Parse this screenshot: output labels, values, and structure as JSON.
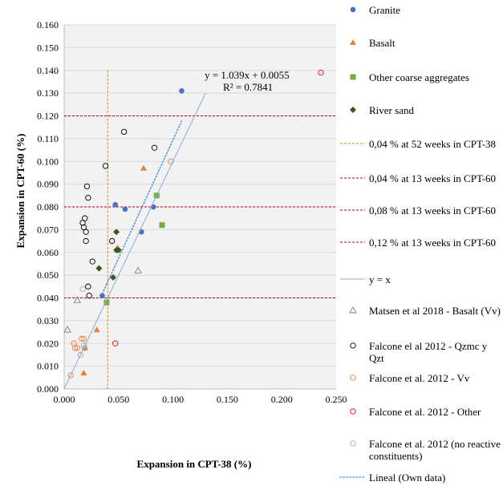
{
  "chart_data": {
    "type": "scatter",
    "xlabel": "Expansion in CPT-38 (%)",
    "ylabel": "Expansion in CPT-60  (%)",
    "xlim": [
      0,
      0.25
    ],
    "ylim": [
      0,
      0.16
    ],
    "x_ticks": [
      "0.000",
      "0.050",
      "0.100",
      "0.150",
      "0.200",
      "0.250"
    ],
    "y_ticks": [
      "0.000",
      "0.010",
      "0.020",
      "0.030",
      "0.040",
      "0.050",
      "0.060",
      "0.070",
      "0.080",
      "0.090",
      "0.100",
      "0.110",
      "0.120",
      "0.130",
      "0.140",
      "0.150",
      "0.160"
    ],
    "grid": "horizontal",
    "equation": "y = 1.039x + 0.0055",
    "r_squared": "R² = 0.7841",
    "series": [
      {
        "name": "Granite",
        "marker": "circle-filled",
        "color": "#4472C4",
        "points": [
          [
            0.035,
            0.041
          ],
          [
            0.047,
            0.081
          ],
          [
            0.056,
            0.079
          ],
          [
            0.071,
            0.069
          ],
          [
            0.082,
            0.08
          ],
          [
            0.108,
            0.131
          ]
        ]
      },
      {
        "name": "Basalt",
        "marker": "triangle-filled",
        "color": "#ED7D31",
        "points": [
          [
            0.018,
            0.007
          ],
          [
            0.019,
            0.018
          ],
          [
            0.03,
            0.026
          ],
          [
            0.049,
            0.062
          ],
          [
            0.073,
            0.097
          ]
        ]
      },
      {
        "name": "Other coarse aggregates",
        "marker": "square-filled",
        "color": "#70AD47",
        "points": [
          [
            0.039,
            0.038
          ],
          [
            0.085,
            0.085
          ],
          [
            0.09,
            0.072
          ]
        ]
      },
      {
        "name": "River sand",
        "marker": "diamond-filled",
        "color": "#375623",
        "points": [
          [
            0.032,
            0.053
          ],
          [
            0.045,
            0.049
          ],
          [
            0.048,
            0.061
          ],
          [
            0.048,
            0.069
          ],
          [
            0.05,
            0.061
          ]
        ]
      },
      {
        "name": "Matsen et al 2018 - Basalt (Vv)",
        "marker": "triangle-open",
        "color": "#808080",
        "points": [
          [
            0.003,
            0.026
          ],
          [
            0.012,
            0.039
          ],
          [
            0.068,
            0.052
          ]
        ]
      },
      {
        "name": "Falcone el al 2012 - Qzmc y Qzt",
        "marker": "circle-open",
        "color": "#000000",
        "points": [
          [
            0.017,
            0.073
          ],
          [
            0.018,
            0.071
          ],
          [
            0.019,
            0.075
          ],
          [
            0.02,
            0.069
          ],
          [
            0.02,
            0.065
          ],
          [
            0.021,
            0.089
          ],
          [
            0.022,
            0.084
          ],
          [
            0.022,
            0.045
          ],
          [
            0.023,
            0.041
          ],
          [
            0.026,
            0.056
          ],
          [
            0.038,
            0.098
          ],
          [
            0.044,
            0.065
          ],
          [
            0.055,
            0.113
          ],
          [
            0.083,
            0.106
          ]
        ]
      },
      {
        "name": "Falcone et al. 2012 - Vv",
        "marker": "circle-open",
        "color": "#ED7D31",
        "points": [
          [
            0.006,
            0.006
          ],
          [
            0.009,
            0.02
          ],
          [
            0.01,
            0.018
          ],
          [
            0.012,
            0.018
          ],
          [
            0.016,
            0.022
          ],
          [
            0.018,
            0.022
          ],
          [
            0.098,
            0.1
          ]
        ]
      },
      {
        "name": "Falcone et al. 2012 - Other",
        "marker": "circle-open",
        "color": "#FF0000",
        "points": [
          [
            0.047,
            0.02
          ],
          [
            0.236,
            0.139
          ]
        ]
      },
      {
        "name": "Falcone et al. 2012 (no reactive constituents)",
        "marker": "circle-open",
        "color": "#A5A5A5",
        "points": [
          [
            0.015,
            0.015
          ],
          [
            0.017,
            0.044
          ],
          [
            0.018,
            0.019
          ],
          [
            0.019,
            0.018
          ]
        ]
      }
    ],
    "reference_lines": [
      {
        "name": "0,04 % at 52 weeks in CPT-38",
        "orientation": "vertical",
        "value": 0.04,
        "color": "#BF9000"
      },
      {
        "name": "0,04 % at 13 weeks in CPT-60",
        "orientation": "horizontal",
        "value": 0.04,
        "color": "#C00000"
      },
      {
        "name": "0,08 % at 13 weeks in CPT-60",
        "orientation": "horizontal",
        "value": 0.08,
        "color": "#C00000"
      },
      {
        "name": "0,12 % at 13 weeks in CPT-60",
        "orientation": "horizontal",
        "value": 0.12,
        "color": "#C00000"
      }
    ],
    "identity_line": {
      "name": "y = x",
      "color": "#8EA9DB",
      "x_range": [
        0,
        0.13
      ]
    },
    "trendline": {
      "name": "Lineal (Own data)",
      "slope": 1.039,
      "intercept": 0.0055,
      "color": "#5B9BD5",
      "x_range": [
        0.035,
        0.108
      ]
    }
  },
  "legend": [
    {
      "label": "Granite",
      "symbol": "circle-filled",
      "color": "#4472C4"
    },
    {
      "label": "Basalt",
      "symbol": "triangle-filled",
      "color": "#ED7D31"
    },
    {
      "label": "Other coarse aggregates",
      "symbol": "square-filled",
      "color": "#70AD47"
    },
    {
      "label": "River sand",
      "symbol": "diamond-filled",
      "color": "#375623"
    },
    {
      "label": "0,04 % at 52 weeks in CPT-38",
      "symbol": "line-dashed",
      "color": "#BF9000"
    },
    {
      "label": "0,04 % at 13 weeks in CPT-60",
      "symbol": "line-dashed",
      "color": "#C00000"
    },
    {
      "label": "0,08 % at 13 weeks in CPT-60",
      "symbol": "line-dashed",
      "color": "#C00000"
    },
    {
      "label": "0,12 % at 13 weeks in CPT-60",
      "symbol": "line-dashed",
      "color": "#C00000"
    },
    {
      "label": "y = x",
      "symbol": "line-solid",
      "color": "#8EA9DB"
    },
    {
      "label": "Matsen et al 2018 - Basalt (Vv)",
      "symbol": "triangle-open",
      "color": "#808080"
    },
    {
      "label": "Falcone el al 2012 - Qzmc y Qzt",
      "symbol": "circle-open",
      "color": "#000000"
    },
    {
      "label": "Falcone et al. 2012 - Vv",
      "symbol": "circle-open",
      "color": "#ED7D31"
    },
    {
      "label": "Falcone et al. 2012 - Other",
      "symbol": "circle-open",
      "color": "#FF0000"
    },
    {
      "label": "Falcone et al. 2012 (no reactive constituents)",
      "symbol": "circle-open",
      "color": "#A5A5A5"
    },
    {
      "label": "Lineal (Own data)",
      "symbol": "line-dotted",
      "color": "#5B9BD5"
    }
  ]
}
